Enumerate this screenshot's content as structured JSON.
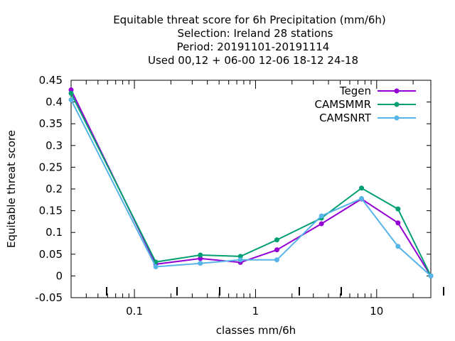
{
  "chart_data": {
    "type": "line",
    "title_lines": [
      "Equitable threat score  for 6h Precipitation (mm/6h)",
      "Selection: Ireland      28 stations",
      "Period: 20191101-20191114",
      "Used  00,12  + 06-00 12-06 18-12 24-18"
    ],
    "xlabel": "classes mm/6h",
    "ylabel": "Equitable threat score",
    "x_scale": "log",
    "xlim": [
      0.03,
      28
    ],
    "ylim": [
      -0.05,
      0.45
    ],
    "x_tick_labels": [
      "0.1",
      "1",
      "10"
    ],
    "y_tick_labels": [
      "-0.05",
      "0",
      "0.05",
      "0.1",
      "0.15",
      "0.2",
      "0.25",
      "0.3",
      "0.35",
      "0.4",
      "0.45"
    ],
    "x": [
      0.03,
      0.15,
      0.35,
      0.75,
      1.5,
      3.5,
      7.5,
      15,
      28
    ],
    "legend_position": "top-right",
    "series": [
      {
        "name": "Tegen",
        "color": "#9400d3",
        "values": [
          0.428,
          0.027,
          0.04,
          0.031,
          0.06,
          0.12,
          0.177,
          0.122,
          0.0
        ]
      },
      {
        "name": "CAMSMMR",
        "color": "#009e73",
        "values": [
          0.42,
          0.032,
          0.048,
          0.045,
          0.083,
          0.133,
          0.202,
          0.154,
          0.0
        ]
      },
      {
        "name": "CAMSNRT",
        "color": "#56b4e9",
        "values": [
          0.405,
          0.021,
          0.029,
          0.037,
          0.037,
          0.138,
          0.178,
          0.068,
          0.0
        ]
      }
    ]
  }
}
